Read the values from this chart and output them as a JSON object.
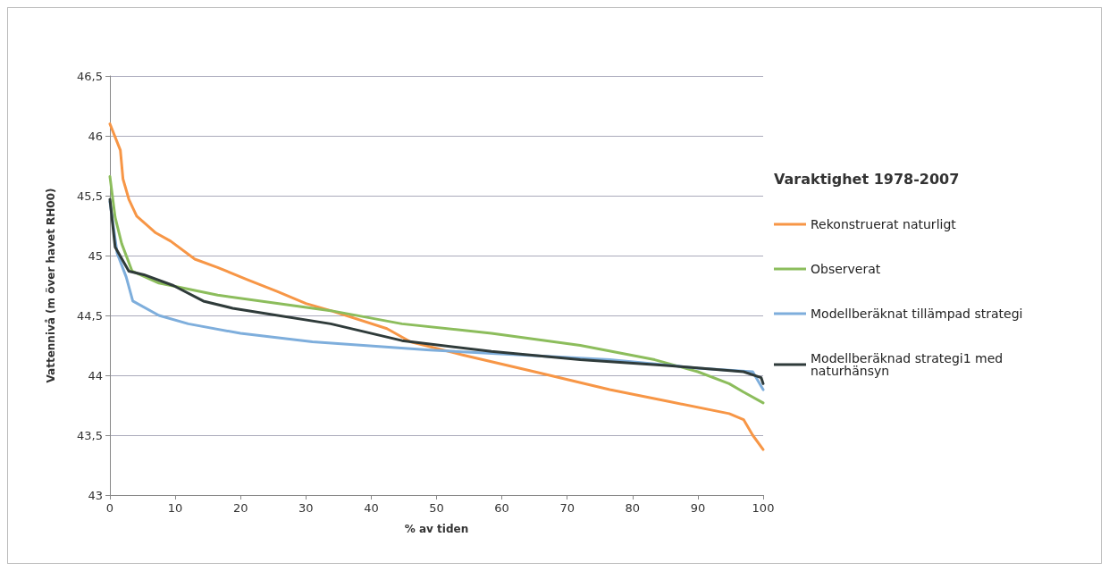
{
  "chart_data": {
    "type": "line",
    "xlabel": "% av tiden",
    "ylabel": "Vattennivå (m över havet RH00)",
    "legend_title": "Varaktighet 1978-2007",
    "xlim": [
      0,
      100
    ],
    "xticks": [
      0,
      10,
      20,
      30,
      40,
      50,
      60,
      70,
      80,
      90,
      100
    ],
    "ylim": [
      43,
      46.5
    ],
    "yticks": [
      {
        "value": 43,
        "label": "43"
      },
      {
        "value": 43.5,
        "label": "43,5"
      },
      {
        "value": 44,
        "label": "44"
      },
      {
        "value": 44.5,
        "label": "44,5"
      },
      {
        "value": 45,
        "label": "45"
      },
      {
        "value": 45.5,
        "label": "45,5"
      },
      {
        "value": 46,
        "label": "46"
      },
      {
        "value": 46.5,
        "label": "46,5"
      }
    ],
    "grid": "y",
    "legend": "right",
    "marker": "none",
    "line_style": "solid",
    "series": [
      {
        "name": "Rekonstruerat naturligt",
        "color": "#f79646",
        "x": [
          0,
          1.6,
          2,
          2.9,
          4.1,
          7,
          9.3,
          13,
          16.5,
          21,
          25.6,
          30,
          33.8,
          42.4,
          46,
          54,
          65,
          76.5,
          85.7,
          94.8,
          97,
          98.4,
          100
        ],
        "values": [
          46.1,
          45.88,
          45.64,
          45.47,
          45.33,
          45.19,
          45.12,
          44.97,
          44.9,
          44.8,
          44.7,
          44.6,
          44.54,
          44.39,
          44.28,
          44.17,
          44.03,
          43.88,
          43.78,
          43.68,
          43.63,
          43.5,
          43.38
        ]
      },
      {
        "name": "Observerat",
        "color": "#8cbd5c",
        "x": [
          0,
          0.8,
          1.8,
          3.4,
          7.5,
          16.5,
          25.6,
          33.8,
          44.7,
          58.4,
          72,
          83.4,
          90,
          94.8,
          97,
          100
        ],
        "values": [
          45.66,
          45.32,
          45.1,
          44.87,
          44.77,
          44.67,
          44.6,
          44.54,
          44.43,
          44.35,
          44.25,
          44.13,
          44.03,
          43.93,
          43.86,
          43.77
        ]
      },
      {
        "name": "Modellberäknat tillämpad strategi",
        "color": "#7eaedc",
        "x": [
          0,
          1.1,
          2.5,
          3.5,
          7.5,
          12,
          20,
          31,
          49,
          63,
          76.5,
          90,
          98.4,
          100
        ],
        "values": [
          45.45,
          45.02,
          44.82,
          44.62,
          44.5,
          44.43,
          44.35,
          44.28,
          44.21,
          44.17,
          44.13,
          44.06,
          44.03,
          43.88
        ]
      },
      {
        "name": "Modellberäknad strategi1 med naturhänsyn",
        "color": "#2f3b3a",
        "x": [
          0,
          0.8,
          2.9,
          5.2,
          9.7,
          14.3,
          18.8,
          23.3,
          33.8,
          44.7,
          58.4,
          72,
          85.7,
          97,
          99.7,
          100
        ],
        "values": [
          45.47,
          45.07,
          44.87,
          44.84,
          44.75,
          44.62,
          44.56,
          44.52,
          44.43,
          44.29,
          44.2,
          44.13,
          44.08,
          44.03,
          43.98,
          43.93
        ]
      }
    ]
  }
}
